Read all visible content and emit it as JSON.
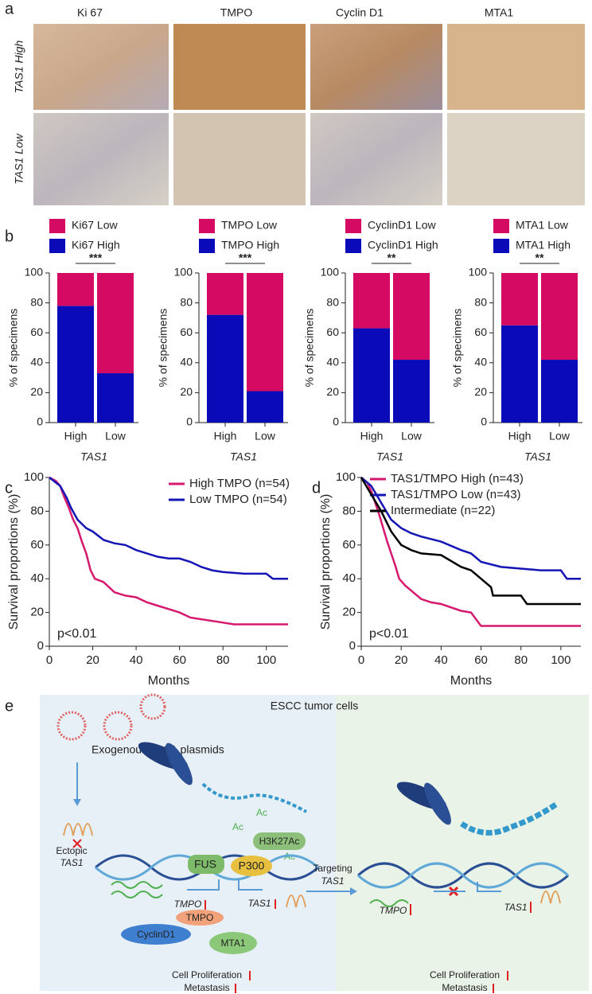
{
  "panel_labels": [
    "a",
    "b",
    "c",
    "d",
    "e"
  ],
  "ihc": {
    "columns": [
      "Ki 67",
      "TMPO",
      "Cyclin D1",
      "MTA1"
    ],
    "rows": [
      "TAS1 High",
      "TAS1 Low"
    ]
  },
  "chart_data": [
    {
      "type": "bar",
      "stacked": true,
      "categories": [
        "High",
        "Low"
      ],
      "series": [
        {
          "name": "Ki67 High",
          "color": "#0a0ab8",
          "values": [
            78,
            33
          ]
        },
        {
          "name": "Ki67 Low",
          "color": "#d40a63",
          "values": [
            22,
            67
          ]
        }
      ],
      "ylim": [
        0,
        100
      ],
      "yticks": [
        0,
        20,
        40,
        60,
        80,
        100
      ],
      "ylabel": "% of specimens",
      "xlabel": "TAS1",
      "significance": "***"
    },
    {
      "type": "bar",
      "stacked": true,
      "categories": [
        "High",
        "Low"
      ],
      "series": [
        {
          "name": "TMPO High",
          "color": "#0a0ab8",
          "values": [
            72,
            21
          ]
        },
        {
          "name": "TMPO Low",
          "color": "#d40a63",
          "values": [
            28,
            79
          ]
        }
      ],
      "ylim": [
        0,
        100
      ],
      "yticks": [
        0,
        20,
        40,
        60,
        80,
        100
      ],
      "ylabel": "% of specimens",
      "xlabel": "TAS1",
      "significance": "***"
    },
    {
      "type": "bar",
      "stacked": true,
      "categories": [
        "High",
        "Low"
      ],
      "series": [
        {
          "name": "CyclinD1 High",
          "color": "#0a0ab8",
          "values": [
            63,
            42
          ]
        },
        {
          "name": "CyclinD1 Low",
          "color": "#d40a63",
          "values": [
            37,
            58
          ]
        }
      ],
      "ylim": [
        0,
        100
      ],
      "yticks": [
        0,
        20,
        40,
        60,
        80,
        100
      ],
      "ylabel": "% of specimens",
      "xlabel": "TAS1",
      "significance": "**"
    },
    {
      "type": "bar",
      "stacked": true,
      "categories": [
        "High",
        "Low"
      ],
      "series": [
        {
          "name": "MTA1 High",
          "color": "#0a0ab8",
          "values": [
            65,
            42
          ]
        },
        {
          "name": "MTA1 Low",
          "color": "#d40a63",
          "values": [
            35,
            58
          ]
        }
      ],
      "ylim": [
        0,
        100
      ],
      "yticks": [
        0,
        20,
        40,
        60,
        80,
        100
      ],
      "ylabel": "% of specimens",
      "xlabel": "TAS1",
      "significance": "**"
    },
    {
      "type": "line",
      "xlabel": "Months",
      "ylabel": "Survival proportions (%)",
      "xlim": [
        0,
        110
      ],
      "xticks": [
        0,
        20,
        40,
        60,
        80,
        100
      ],
      "ylim": [
        0,
        100
      ],
      "yticks": [
        0,
        20,
        40,
        60,
        80,
        100
      ],
      "annotation": "p<0.01",
      "series": [
        {
          "name": "High TMPO (n=54)",
          "color": "#d6196e",
          "x": [
            0,
            3,
            5,
            7,
            9,
            11,
            13,
            15,
            17,
            19,
            21,
            25,
            30,
            35,
            40,
            45,
            50,
            55,
            60,
            65,
            70,
            80,
            85,
            110
          ],
          "values": [
            100,
            98,
            95,
            88,
            82,
            75,
            70,
            62,
            55,
            45,
            40,
            38,
            32,
            30,
            29,
            26,
            24,
            22,
            20,
            17,
            16,
            14,
            13,
            13
          ]
        },
        {
          "name": "Low TMPO (n=54)",
          "color": "#1515b5",
          "x": [
            0,
            5,
            8,
            10,
            13,
            17,
            20,
            25,
            30,
            35,
            40,
            45,
            50,
            55,
            60,
            65,
            70,
            75,
            80,
            90,
            100,
            103,
            110
          ],
          "values": [
            100,
            95,
            88,
            82,
            75,
            70,
            68,
            63,
            61,
            60,
            57,
            55,
            53,
            52,
            52,
            50,
            47,
            45,
            44,
            43,
            43,
            40,
            40
          ]
        }
      ]
    },
    {
      "type": "line",
      "xlabel": "Months",
      "ylabel": "Survival proportions (%)",
      "xlim": [
        0,
        110
      ],
      "xticks": [
        0,
        20,
        40,
        60,
        80,
        100
      ],
      "ylim": [
        0,
        100
      ],
      "yticks": [
        0,
        20,
        40,
        60,
        80,
        100
      ],
      "annotation": "p<0.01",
      "series": [
        {
          "name": "TAS1/TMPO High (n=43)",
          "color": "#d6196e",
          "x": [
            0,
            3,
            5,
            7,
            9,
            11,
            13,
            15,
            17,
            19,
            22,
            25,
            30,
            35,
            40,
            50,
            55,
            60,
            70,
            85,
            110
          ],
          "values": [
            100,
            97,
            92,
            85,
            78,
            70,
            62,
            55,
            48,
            40,
            36,
            33,
            28,
            26,
            25,
            21,
            20,
            12,
            12,
            12,
            12
          ]
        },
        {
          "name": "TAS1/TMPO Low (n=43)",
          "color": "#1515b5",
          "x": [
            0,
            5,
            10,
            15,
            20,
            25,
            30,
            40,
            50,
            55,
            60,
            70,
            80,
            90,
            100,
            103,
            110
          ],
          "values": [
            100,
            95,
            85,
            75,
            70,
            67,
            65,
            62,
            57,
            55,
            50,
            47,
            46,
            45,
            45,
            40,
            40
          ]
        },
        {
          "name": "Intermediate (n=22)",
          "color": "#000000",
          "x": [
            0,
            5,
            10,
            15,
            20,
            25,
            30,
            40,
            50,
            55,
            60,
            65,
            66,
            80,
            83,
            110
          ],
          "values": [
            100,
            90,
            80,
            68,
            60,
            57,
            55,
            54,
            47,
            45,
            40,
            35,
            30,
            30,
            25,
            25
          ]
        }
      ]
    }
  ],
  "diagram": {
    "title": "ESCC tumor cells",
    "plasmids": "Exogenous TAS1 plasmids",
    "ac": [
      "Ac",
      "Ac",
      "Ac"
    ],
    "h3k27ac": "H3K27Ac",
    "fus": "FUS",
    "p300": "P300",
    "ectopic": [
      "Ectopic",
      "TAS1"
    ],
    "tmpo_gene": "TMPO",
    "tmpo_protein": "TMPO",
    "tas1_gene": "TAS1",
    "cyclind1": "CyclinD1",
    "mta1": "MTA1",
    "targeting": [
      "Targeting",
      "TAS1"
    ],
    "tmpo_gene_right": "TMPO",
    "tas1_gene_right": "TAS1",
    "outcome_left": [
      "Cell Proliferation",
      "Metastasis"
    ],
    "outcome_right": [
      "Cell Proliferation",
      "Metastasis"
    ]
  }
}
